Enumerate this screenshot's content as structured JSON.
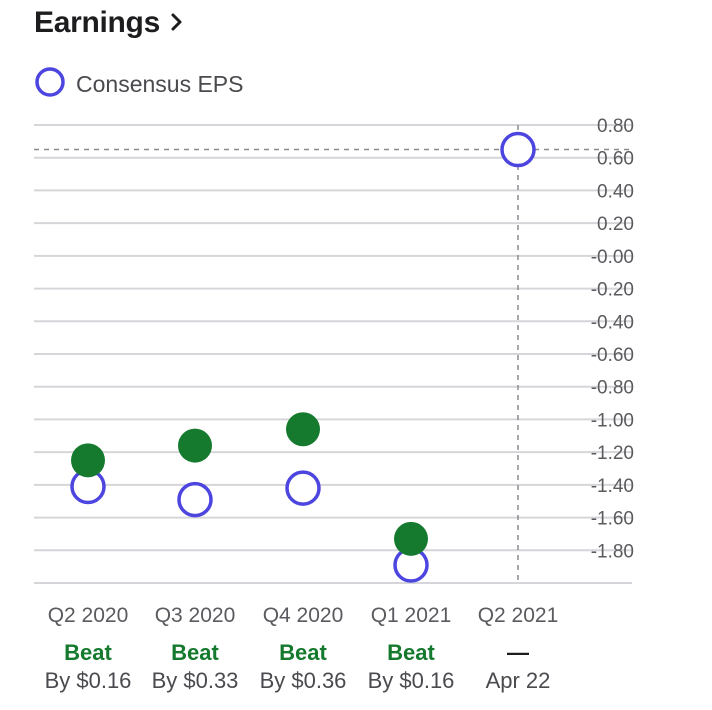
{
  "header": {
    "title": "Earnings"
  },
  "legend": {
    "label": "Consensus EPS"
  },
  "colors": {
    "actual": "#157a2e",
    "estimate": "#4c45e0",
    "grid": "#d6d6da",
    "beat": "#157a2e"
  },
  "chart_data": {
    "type": "scatter",
    "ylim": [
      -2.0,
      0.8
    ],
    "yticks": [
      "0.80",
      "0.60",
      "0.40",
      "0.20",
      "-0.00",
      "-0.20",
      "-0.40",
      "-0.60",
      "-0.80",
      "-1.00",
      "-1.20",
      "-1.40",
      "-1.60",
      "-1.80"
    ],
    "ytick_values": [
      0.8,
      0.6,
      0.4,
      0.2,
      0.0,
      -0.2,
      -0.4,
      -0.6,
      -0.8,
      -1.0,
      -1.2,
      -1.4,
      -1.6,
      -1.8
    ],
    "categories": [
      "Q2 2020",
      "Q3 2020",
      "Q4 2020",
      "Q1 2021",
      "Q2 2021"
    ],
    "series": [
      {
        "name": "Consensus EPS",
        "values": [
          -1.41,
          -1.49,
          -1.42,
          -1.89,
          0.65
        ]
      },
      {
        "values": [
          -1.25,
          -1.16,
          -1.06,
          -1.73,
          null
        ]
      }
    ],
    "status": [
      "Beat",
      "Beat",
      "Beat",
      "Beat",
      "—"
    ],
    "detail": [
      "By $0.16",
      "By $0.33",
      "By $0.36",
      "By $0.16",
      "Apr 22"
    ],
    "highlight": {
      "category_index": 4,
      "value": 0.65
    }
  }
}
